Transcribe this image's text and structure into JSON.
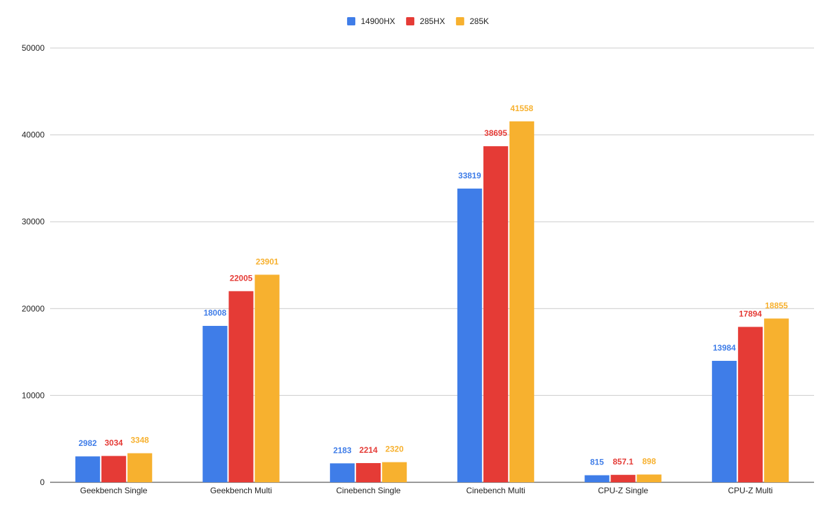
{
  "chart_data": {
    "type": "bar",
    "categories": [
      "Geekbench Single",
      "Geekbench Multi",
      "Cinebench Single",
      "Cinebench Multi",
      "CPU-Z Single",
      "CPU-Z Multi"
    ],
    "series": [
      {
        "name": "14900HX",
        "color": "#3f7de8",
        "values": [
          2982,
          18008,
          2183,
          33819,
          815,
          13984
        ],
        "labels": [
          "2982",
          "18008",
          "2183",
          "33819",
          "815",
          "13984"
        ]
      },
      {
        "name": "285HX",
        "color": "#e53b36",
        "values": [
          3034,
          22005,
          2214,
          38695,
          857.1,
          17894
        ],
        "labels": [
          "3034",
          "22005",
          "2214",
          "38695",
          "857.1",
          "17894"
        ]
      },
      {
        "name": "285K",
        "color": "#f7b12f",
        "values": [
          3348,
          23901,
          2320,
          41558,
          898,
          18855
        ],
        "labels": [
          "3348",
          "23901",
          "2320",
          "41558",
          "898",
          "18855"
        ]
      }
    ],
    "title": "",
    "xlabel": "",
    "ylabel": "",
    "ylim": [
      0,
      50000
    ],
    "yticks": [
      "0",
      "10000",
      "20000",
      "30000",
      "40000",
      "50000"
    ],
    "grid": true,
    "legend_position": "top-center",
    "data_labels": true
  }
}
